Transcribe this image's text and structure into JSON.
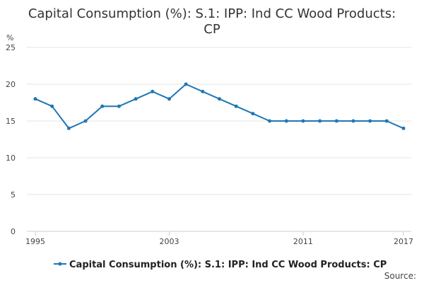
{
  "chart_data": {
    "type": "line",
    "title_lines": [
      "Capital Consumption (%): S.1: IPP: Ind CC Wood Products:",
      "CP"
    ],
    "ylabel": "%",
    "ylim": [
      0,
      25
    ],
    "yticks": [
      0,
      5,
      10,
      15,
      20,
      25
    ],
    "x": [
      1995,
      1996,
      1997,
      1998,
      1999,
      2000,
      2001,
      2002,
      2003,
      2004,
      2005,
      2006,
      2007,
      2008,
      2009,
      2010,
      2011,
      2012,
      2013,
      2014,
      2015,
      2016,
      2017
    ],
    "xticks": [
      1995,
      2003,
      2011,
      2017
    ],
    "series": [
      {
        "name": "Capital Consumption (%): S.1: IPP: Ind CC Wood Products: CP",
        "color": "#1f77b4",
        "values": [
          18,
          17,
          14,
          15,
          17,
          17,
          18,
          19,
          18,
          20,
          19,
          18,
          17,
          16,
          15,
          15,
          15,
          15,
          15,
          15,
          15,
          15,
          14
        ]
      }
    ],
    "grid": true,
    "legend": "bottom-center",
    "source_label": "Source:"
  }
}
